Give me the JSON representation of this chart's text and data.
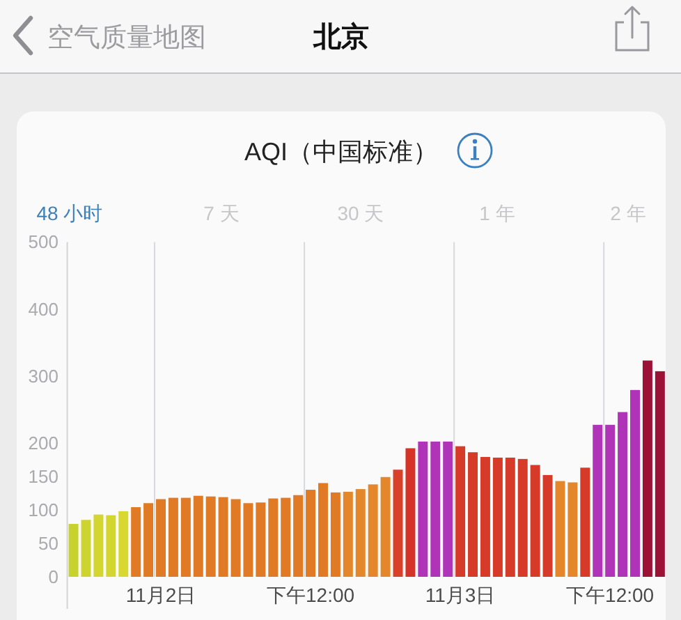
{
  "chart_data": {
    "type": "bar",
    "title": "AQI（中国标准）",
    "annotations": [
      "空气质量地图",
      "北京",
      "48 小时",
      "7 天",
      "30 天",
      "1 年",
      "2 年"
    ],
    "categories": [
      null,
      null,
      null,
      null,
      null,
      null,
      null,
      "11月2日",
      null,
      null,
      null,
      null,
      null,
      null,
      null,
      null,
      null,
      null,
      null,
      "下午12:00",
      null,
      null,
      null,
      null,
      null,
      null,
      null,
      null,
      null,
      null,
      null,
      "11月3日",
      null,
      null,
      null,
      null,
      null,
      null,
      null,
      null,
      null,
      null,
      null,
      "下午12:00",
      null,
      null,
      null,
      null
    ],
    "values": [
      79,
      85,
      93,
      92,
      98,
      104,
      110,
      116,
      118,
      118,
      121,
      120,
      119,
      116,
      110,
      111,
      117,
      118,
      122,
      130,
      140,
      126,
      127,
      131,
      138,
      149,
      160,
      192,
      202,
      202,
      202,
      195,
      186,
      179,
      178,
      178,
      176,
      167,
      152,
      143,
      141,
      163,
      227,
      227,
      246,
      279,
      323,
      307
    ],
    "colors": [
      "#c8d22c",
      "#cdd42d",
      "#d2d62f",
      "#d2d62f",
      "#d8d831",
      "#e07a24",
      "#e07a24",
      "#e07a24",
      "#e07a24",
      "#e07a24",
      "#e07a24",
      "#e07a24",
      "#e07a24",
      "#e07a24",
      "#e07a24",
      "#e07a24",
      "#e07a24",
      "#e07a24",
      "#e07a24",
      "#e07a24",
      "#e07a24",
      "#e07a24",
      "#e4862a",
      "#e4862a",
      "#e4862a",
      "#e4862a",
      "#d8402a",
      "#d63328",
      "#b034b8",
      "#b034b8",
      "#b034b8",
      "#d63a28",
      "#d63a28",
      "#d63a28",
      "#d63a28",
      "#d63a28",
      "#d63a28",
      "#d63a28",
      "#d63a28",
      "#e4862a",
      "#e4862a",
      "#d63a28",
      "#b034b8",
      "#b034b8",
      "#b034b8",
      "#b034b8",
      "#9c1236",
      "#9c1236"
    ],
    "ylim": [
      0,
      500
    ],
    "yticks": [
      0,
      50,
      100,
      150,
      200,
      300,
      400,
      500
    ],
    "grid": "x"
  }
}
